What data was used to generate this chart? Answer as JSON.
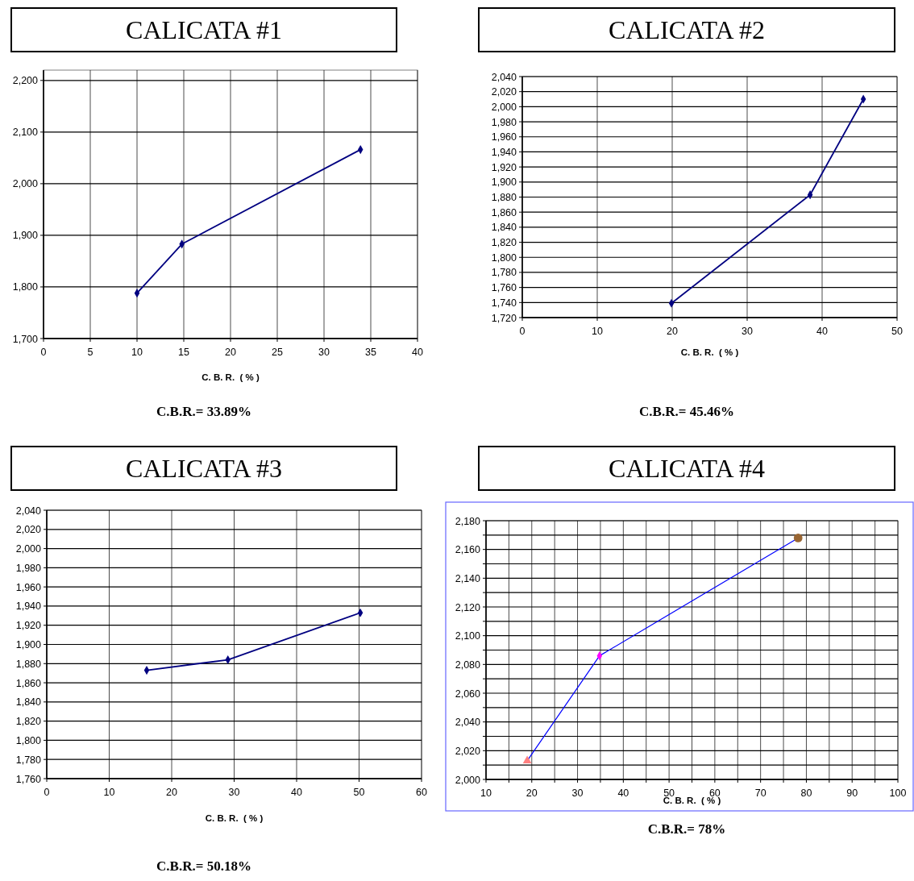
{
  "chart_data": [
    {
      "type": "line",
      "title": "CALICATA #1",
      "xlabel": "C. B. R.  ( % )",
      "annotations": [
        "C.B.R.= 33.89%"
      ],
      "xlim": [
        0,
        40
      ],
      "xticks": [
        0,
        5,
        10,
        15,
        20,
        25,
        30,
        35,
        40
      ],
      "ylim": [
        1700,
        2220
      ],
      "yticks": [
        {
          "value": 1700,
          "label": "1,700"
        },
        {
          "value": 1800,
          "label": "1,800"
        },
        {
          "value": 1900,
          "label": "1,900"
        },
        {
          "value": 2000,
          "label": "2,000"
        },
        {
          "value": 2100,
          "label": "2,100"
        },
        {
          "value": 2200,
          "label": "2,200"
        }
      ],
      "grid": true,
      "marker": "diamond",
      "series": [
        {
          "color": "#000080",
          "x": [
            10,
            14.8,
            33.9
          ],
          "values": [
            1788,
            1883,
            2066
          ]
        }
      ]
    },
    {
      "type": "line",
      "title": "CALICATA #2",
      "xlabel": "C. B. R.  ( % )",
      "annotations": [
        "C.B.R.= 45.46%"
      ],
      "xlim": [
        0,
        50
      ],
      "xticks": [
        0,
        10,
        20,
        30,
        40,
        50
      ],
      "ylim": [
        1720,
        2040
      ],
      "yticks": [
        {
          "value": 1720,
          "label": "1,720"
        },
        {
          "value": 1740,
          "label": "1,740"
        },
        {
          "value": 1760,
          "label": "1,760"
        },
        {
          "value": 1780,
          "label": "1,780"
        },
        {
          "value": 1800,
          "label": "1,800"
        },
        {
          "value": 1820,
          "label": "1,820"
        },
        {
          "value": 1840,
          "label": "1,840"
        },
        {
          "value": 1860,
          "label": "1,860"
        },
        {
          "value": 1880,
          "label": "1,880"
        },
        {
          "value": 1900,
          "label": "1,900"
        },
        {
          "value": 1920,
          "label": "1,920"
        },
        {
          "value": 1940,
          "label": "1,940"
        },
        {
          "value": 1960,
          "label": "1,960"
        },
        {
          "value": 1980,
          "label": "1,980"
        },
        {
          "value": 2000,
          "label": "2,000"
        },
        {
          "value": 2020,
          "label": "2,020"
        },
        {
          "value": 2040,
          "label": "2,040"
        }
      ],
      "grid": true,
      "marker": "diamond",
      "series": [
        {
          "color": "#000080",
          "x": [
            19.9,
            38.4,
            45.5
          ],
          "values": [
            1739,
            1883,
            2010
          ]
        }
      ]
    },
    {
      "type": "line",
      "title": "CALICATA #3",
      "xlabel": "C. B. R.  ( % )",
      "annotations": [
        "C.B.R.= 50.18%"
      ],
      "xlim": [
        0,
        60
      ],
      "xticks": [
        0,
        10,
        20,
        30,
        40,
        50,
        60
      ],
      "ylim": [
        1760,
        2040
      ],
      "yticks": [
        {
          "value": 1760,
          "label": "1,760"
        },
        {
          "value": 1780,
          "label": "1,780"
        },
        {
          "value": 1800,
          "label": "1,800"
        },
        {
          "value": 1820,
          "label": "1,820"
        },
        {
          "value": 1840,
          "label": "1,840"
        },
        {
          "value": 1860,
          "label": "1,860"
        },
        {
          "value": 1880,
          "label": "1,880"
        },
        {
          "value": 1900,
          "label": "1,900"
        },
        {
          "value": 1920,
          "label": "1,920"
        },
        {
          "value": 1940,
          "label": "1,940"
        },
        {
          "value": 1960,
          "label": "1,960"
        },
        {
          "value": 1980,
          "label": "1,980"
        },
        {
          "value": 2000,
          "label": "2,000"
        },
        {
          "value": 2020,
          "label": "2,020"
        },
        {
          "value": 2040,
          "label": "2,040"
        }
      ],
      "grid": true,
      "marker": "diamond",
      "series": [
        {
          "color": "#000080",
          "x": [
            16,
            29,
            50.2
          ],
          "values": [
            1873,
            1884,
            1933
          ]
        }
      ]
    },
    {
      "type": "line",
      "title": "CALICATA #4",
      "xlabel": "C. B. R.  ( % )",
      "annotations": [
        "C.B.R.= 78%"
      ],
      "xlim": [
        10,
        100
      ],
      "xticks": [
        10,
        {
          "value": 15,
          "label": null
        },
        20,
        {
          "value": 25,
          "label": null
        },
        30,
        {
          "value": 35,
          "label": null
        },
        40,
        {
          "value": 45,
          "label": null
        },
        50,
        {
          "value": 55,
          "label": null
        },
        60,
        {
          "value": 65,
          "label": null
        },
        70,
        {
          "value": 75,
          "label": null
        },
        80,
        {
          "value": 85,
          "label": null
        },
        90,
        {
          "value": 95,
          "label": null
        },
        100
      ],
      "ylim": [
        2000,
        2180
      ],
      "yticks": [
        {
          "value": 2000,
          "label": "2,000"
        },
        {
          "value": 2010,
          "label": null
        },
        {
          "value": 2020,
          "label": "2,020"
        },
        {
          "value": 2030,
          "label": null
        },
        {
          "value": 2040,
          "label": "2,040"
        },
        {
          "value": 2050,
          "label": null
        },
        {
          "value": 2060,
          "label": "2,060"
        },
        {
          "value": 2070,
          "label": null
        },
        {
          "value": 2080,
          "label": "2,080"
        },
        {
          "value": 2090,
          "label": null
        },
        {
          "value": 2100,
          "label": "2,100"
        },
        {
          "value": 2110,
          "label": null
        },
        {
          "value": 2120,
          "label": "2,120"
        },
        {
          "value": 2130,
          "label": null
        },
        {
          "value": 2140,
          "label": "2,140"
        },
        {
          "value": 2150,
          "label": null
        },
        {
          "value": 2160,
          "label": "2,160"
        },
        {
          "value": 2170,
          "label": null
        },
        {
          "value": 2180,
          "label": "2,180"
        }
      ],
      "grid": true,
      "series": [
        {
          "type": "line",
          "marker": "none",
          "color": "#0000ff",
          "x": [
            19,
            34.8,
            78.2
          ],
          "values": [
            2013,
            2086,
            2168
          ]
        },
        {
          "type": "scatter",
          "marker": "triangle",
          "color": "#ff8080",
          "x": [
            19
          ],
          "values": [
            2013
          ]
        },
        {
          "type": "scatter",
          "marker": "diamond",
          "color": "#ff00ff",
          "x": [
            34.8
          ],
          "values": [
            2086
          ]
        },
        {
          "type": "scatter",
          "marker": "circle",
          "color": "#996633",
          "x": [
            78.2
          ],
          "values": [
            2168
          ]
        }
      ]
    }
  ]
}
